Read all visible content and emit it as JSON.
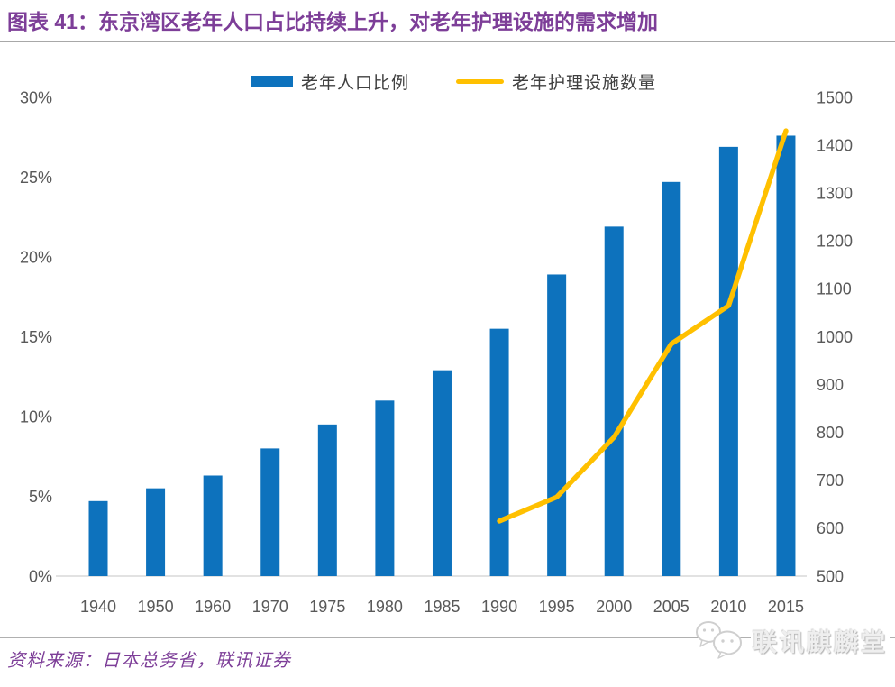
{
  "header": {
    "title": "图表 41：东京湾区老年人口占比持续上升，对老年护理设施的需求增加"
  },
  "chart_data": {
    "type": "bar+line",
    "title": "图表 41：东京湾区老年人口占比持续上升，对老年护理设施的需求增加",
    "categories": [
      "1940",
      "1950",
      "1960",
      "1970",
      "1975",
      "1980",
      "1985",
      "1990",
      "1995",
      "2000",
      "2005",
      "2010",
      "2015"
    ],
    "series": [
      {
        "name": "老年人口比例",
        "type": "bar",
        "axis": "left",
        "color": "#0D72BD",
        "unit": "%",
        "values": [
          4.7,
          5.5,
          6.3,
          8.0,
          9.5,
          11.0,
          12.9,
          15.5,
          18.9,
          21.9,
          24.7,
          26.9,
          27.6
        ]
      },
      {
        "name": "老年护理设施数量",
        "type": "line",
        "axis": "right",
        "color": "#FFC000",
        "values": [
          null,
          null,
          null,
          null,
          null,
          null,
          null,
          615,
          665,
          790,
          985,
          1065,
          1430
        ]
      }
    ],
    "left_axis": {
      "min": 0,
      "max": 30,
      "step": 5,
      "tick_labels": [
        "0%",
        "5%",
        "10%",
        "15%",
        "20%",
        "25%",
        "30%"
      ]
    },
    "right_axis": {
      "min": 500,
      "max": 1500,
      "step": 100,
      "tick_labels": [
        "500",
        "600",
        "700",
        "800",
        "900",
        "1000",
        "1100",
        "1200",
        "1300",
        "1400",
        "1500"
      ]
    },
    "grid": false,
    "legend_position": "top",
    "tick_color": "#595959",
    "axis_line_color": "#d9d9d9"
  },
  "footer": {
    "source": "资料来源：日本总务省，联讯证券",
    "logo_text": "联讯麒麟堂"
  }
}
